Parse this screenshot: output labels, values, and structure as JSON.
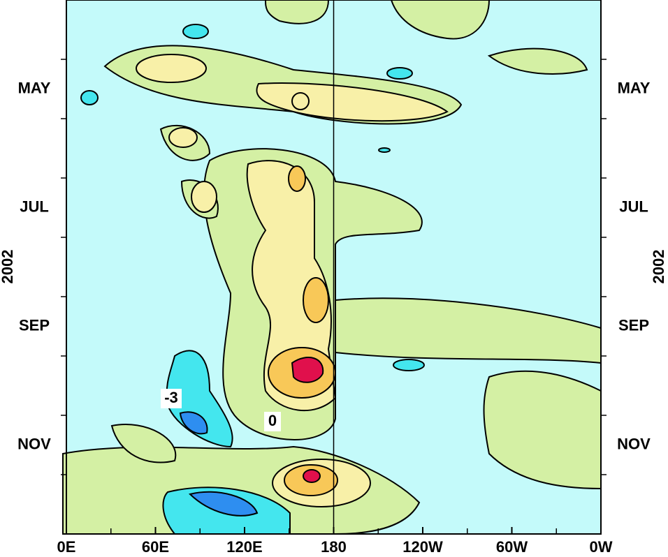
{
  "chart_data": {
    "type": "contour",
    "x_label": null,
    "y_label": "2002",
    "xlim": [
      0,
      360
    ],
    "xticks": [
      {
        "value": 0,
        "label": "0E"
      },
      {
        "value": 60,
        "label": "60E"
      },
      {
        "value": 120,
        "label": "120E"
      },
      180,
      {
        "value": 240,
        "label": "120W"
      },
      {
        "value": 300,
        "label": "60W"
      },
      {
        "value": 360,
        "label": "0W"
      }
    ],
    "x_minor_ticks": [
      30,
      90,
      150,
      210,
      270,
      330
    ],
    "y_categories": [
      null,
      "MAY",
      null,
      "JUL",
      null,
      "SEP",
      null,
      "NOV",
      null
    ],
    "reference_x": 180,
    "contour_labels": [
      -3,
      0
    ]
  }
}
